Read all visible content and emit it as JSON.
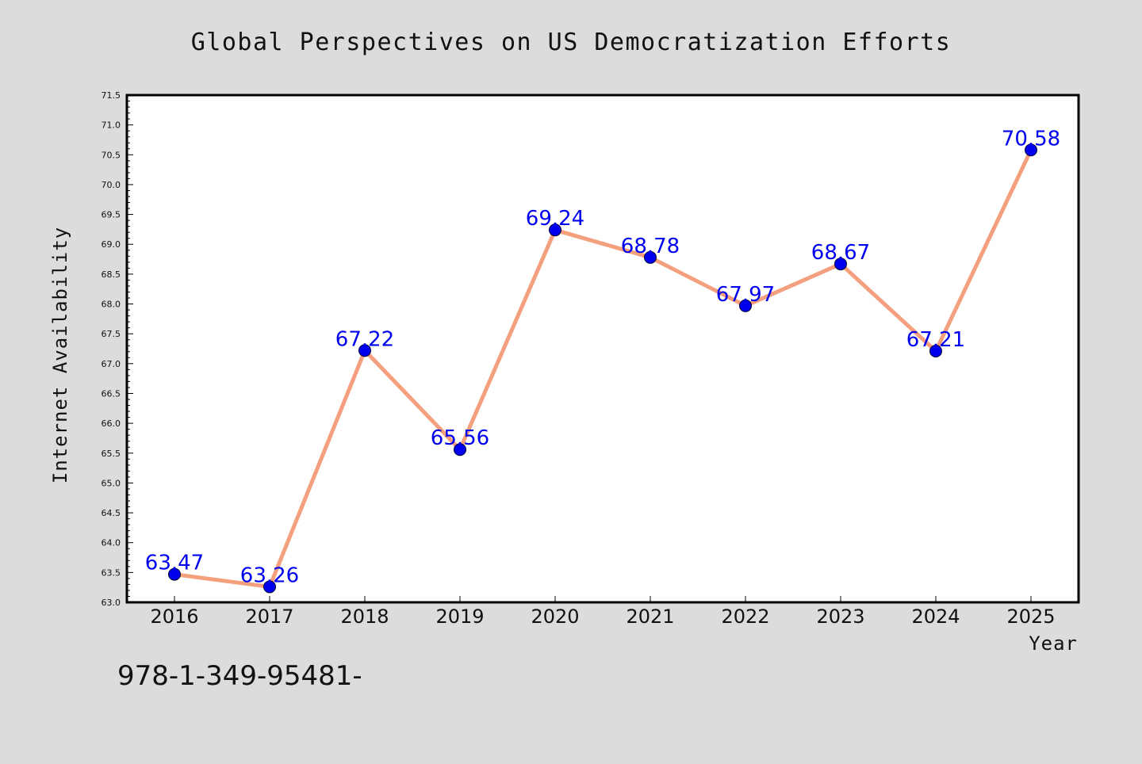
{
  "chart_data": {
    "type": "line",
    "title": "Global Perspectives on US Democratization Efforts",
    "xlabel": "Year",
    "ylabel": "Internet Availability",
    "categories": [
      "2016",
      "2017",
      "2018",
      "2019",
      "2020",
      "2021",
      "2022",
      "2023",
      "2024",
      "2025"
    ],
    "series": [
      {
        "values": [
          63.47,
          63.26,
          67.22,
          65.56,
          69.24,
          68.78,
          67.97,
          68.67,
          67.21,
          70.58
        ]
      }
    ],
    "data_labels": [
      "63.47",
      "63.26",
      "67.22",
      "65.56",
      "69.24",
      "68.78",
      "67.97",
      "68.67",
      "67.21",
      "70.58"
    ],
    "ylim": [
      63.0,
      71.5
    ],
    "ytick_labels": [
      "63.0",
      "63.5",
      "64.0",
      "64.5",
      "65.0",
      "65.5",
      "66.0",
      "66.5",
      "67.0",
      "67.5",
      "68.0",
      "68.5",
      "69.0",
      "69.5",
      "70.0",
      "70.5",
      "71.0",
      "71.5"
    ],
    "grid": false,
    "line_color": "#f4a07e",
    "marker_color": "#0000ee",
    "label_color": "#0000ee"
  },
  "footer": {
    "isbn": "978-1-349-95481-"
  }
}
